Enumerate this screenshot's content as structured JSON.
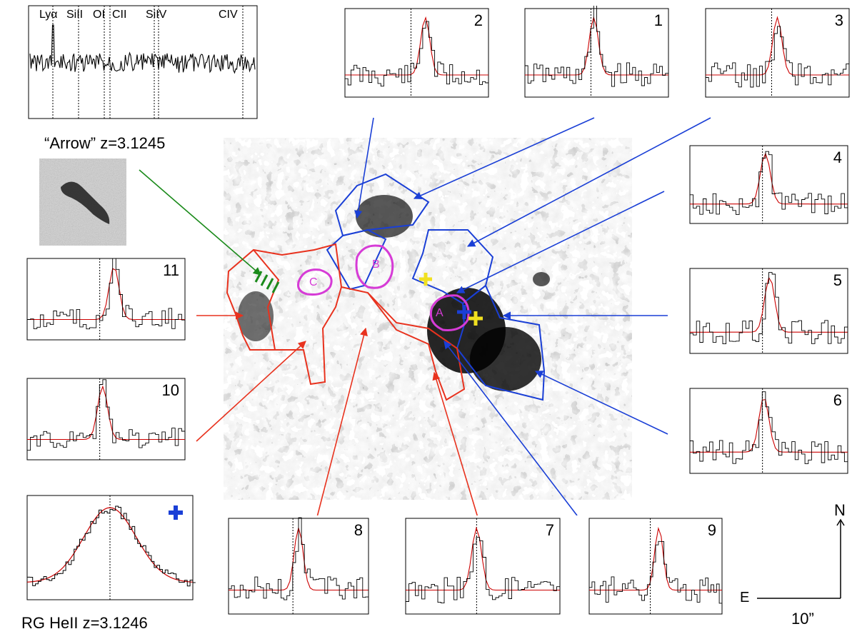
{
  "figure": {
    "top_spectrum": {
      "line_labels": [
        "Lyα",
        "SiII",
        "OI",
        "CII",
        "SiIV",
        "CIV"
      ]
    },
    "arrow_label": "“Arrow” z=3.1245",
    "rg_label": "RG HeII z=3.1246",
    "compass": {
      "north": "N",
      "east": "E",
      "scale": "10”"
    },
    "regions_magenta": [
      "A",
      "B",
      "C"
    ],
    "panels": [
      {
        "id": "2",
        "label": "2"
      },
      {
        "id": "1",
        "label": "1"
      },
      {
        "id": "3",
        "label": "3"
      },
      {
        "id": "4",
        "label": "4"
      },
      {
        "id": "5",
        "label": "5"
      },
      {
        "id": "6",
        "label": "6"
      },
      {
        "id": "11",
        "label": "11"
      },
      {
        "id": "10",
        "label": "10"
      },
      {
        "id": "8",
        "label": "8"
      },
      {
        "id": "7",
        "label": "7"
      },
      {
        "id": "9",
        "label": "9"
      }
    ],
    "colors": {
      "blue": "#1a3fd6",
      "red": "#e8321e",
      "green": "#1a8a1a",
      "magenta": "#d63bd6",
      "yellow": "#f0e020",
      "fit": "#cc0000"
    }
  }
}
